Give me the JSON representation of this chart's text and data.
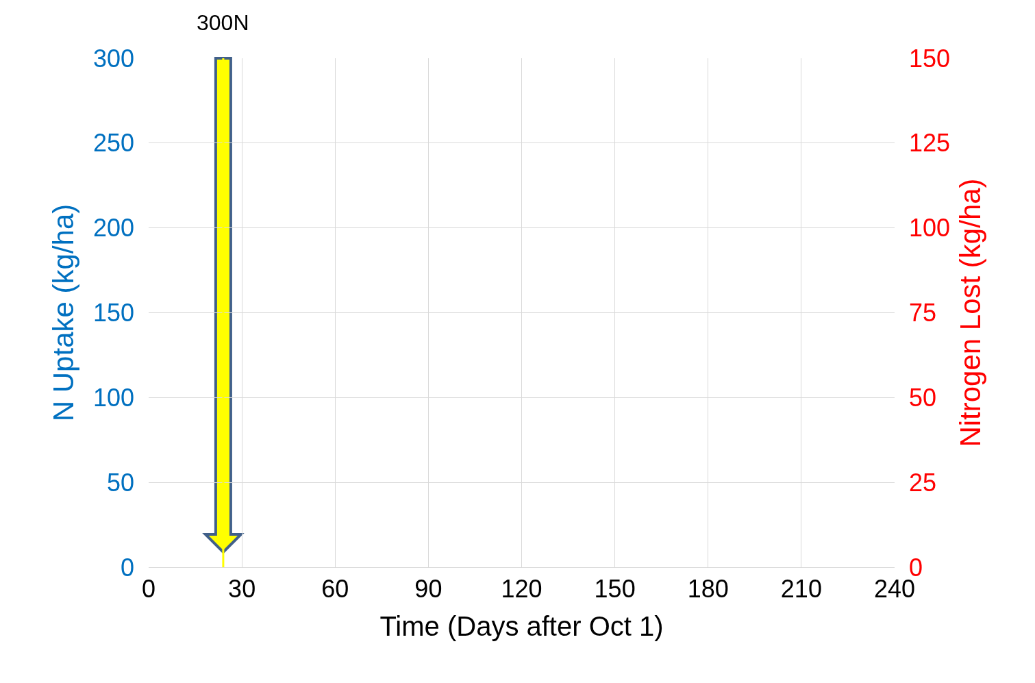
{
  "chart_data": {
    "type": "line",
    "xlabel": "Time (Days after Oct 1)",
    "ylabel": "N Uptake (kg/ha)",
    "y2label": "Nitrogen Lost (kg/ha)",
    "xlim": [
      0,
      240
    ],
    "xticks": [
      0,
      30,
      60,
      90,
      120,
      150,
      180,
      210,
      240
    ],
    "ylim": [
      0,
      300
    ],
    "yticks": [
      0,
      50,
      100,
      150,
      200,
      250,
      300
    ],
    "y2lim": [
      0,
      150
    ],
    "y2ticks": [
      0,
      25,
      50,
      75,
      100,
      125,
      150
    ],
    "grid": true,
    "ref_lines": [
      {
        "axis": "x",
        "value": 24,
        "label": "300N"
      }
    ]
  }
}
